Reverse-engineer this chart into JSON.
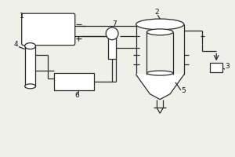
{
  "bg_color": "#f0f0eb",
  "line_color": "#2a2a2a",
  "label_color": "#111111",
  "lw": 0.9
}
